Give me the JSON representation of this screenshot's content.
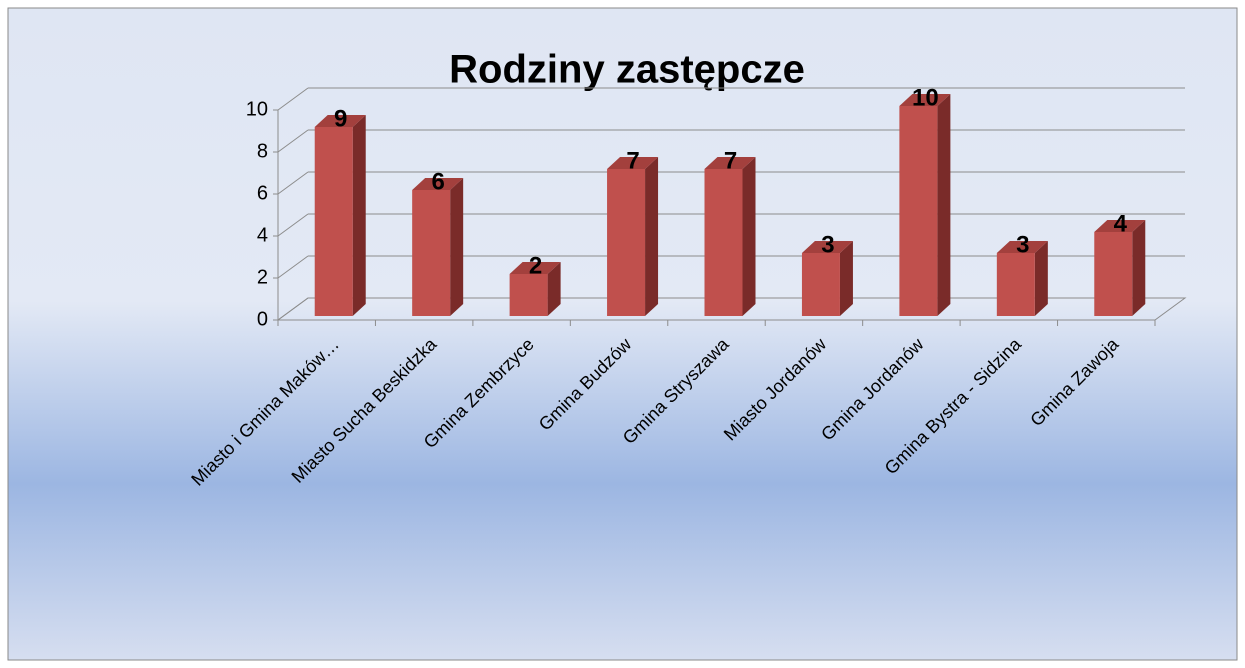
{
  "chart_data": {
    "type": "bar",
    "title": "Rodziny zastępcze",
    "categories": [
      "Miasto i Gmina Maków…",
      "Miasto Sucha Beskidzka",
      "Gmina Zembrzyce",
      "Gmina Budzów",
      "Gmina Stryszawa",
      "Miasto Jordanów",
      "Gmina Jordanów",
      "Gmina Bystra - Sidzina",
      "Gmina Zawoja"
    ],
    "values": [
      9,
      6,
      2,
      7,
      7,
      3,
      10,
      3,
      4
    ],
    "color": "#c0504d",
    "ylim": [
      0,
      10
    ],
    "yticks": [
      0,
      2,
      4,
      6,
      8,
      10
    ],
    "grid": true
  }
}
